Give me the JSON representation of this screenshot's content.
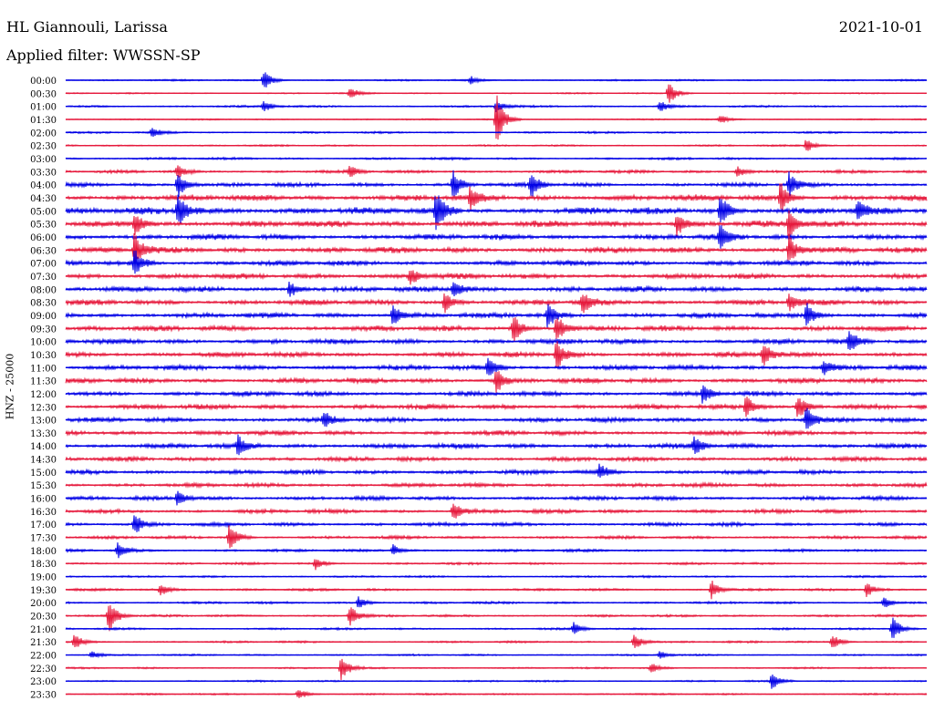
{
  "header": {
    "station": "HL Giannouli, Larissa",
    "date": "2021-10-01",
    "filter": "Applied filter: WWSSN-SP"
  },
  "ylabel": "HNZ - 25000",
  "colors": {
    "trace_a": "#0000e6",
    "trace_b": "#e6193c",
    "text": "#000000",
    "background": "#ffffff"
  },
  "chart_data": {
    "type": "line",
    "title": "HL Giannouli, Larissa",
    "subtitle": "Applied filter: WWSSN-SP",
    "ylabel": "HNZ - 25000",
    "xlabel": "",
    "grid": false,
    "legend": "none",
    "row_minutes": 30,
    "row_labels": [
      "00:00",
      "00:30",
      "01:00",
      "01:30",
      "02:00",
      "02:30",
      "03:00",
      "03:30",
      "04:00",
      "04:30",
      "05:00",
      "05:30",
      "06:00",
      "06:30",
      "07:00",
      "07:30",
      "08:00",
      "08:30",
      "09:00",
      "09:30",
      "10:00",
      "10:30",
      "11:00",
      "11:30",
      "12:00",
      "12:30",
      "13:00",
      "13:30",
      "14:00",
      "14:30",
      "15:00",
      "15:30",
      "16:00",
      "16:30",
      "17:00",
      "17:30",
      "18:00",
      "18:30",
      "19:00",
      "19:30",
      "20:00",
      "20:30",
      "21:00",
      "21:30",
      "22:00",
      "22:30",
      "23:00",
      "23:30"
    ],
    "row_colors": [
      "#0000e6",
      "#e6193c"
    ],
    "noise_level": [
      0.25,
      0.2,
      0.3,
      0.2,
      0.3,
      0.25,
      0.35,
      0.45,
      0.6,
      0.9,
      1.0,
      0.95,
      0.8,
      0.85,
      0.75,
      0.8,
      0.8,
      0.8,
      0.75,
      0.8,
      0.75,
      0.75,
      0.75,
      0.75,
      0.7,
      0.75,
      0.7,
      0.7,
      0.7,
      0.65,
      0.65,
      0.6,
      0.6,
      0.6,
      0.55,
      0.45,
      0.4,
      0.35,
      0.3,
      0.35,
      0.35,
      0.35,
      0.3,
      0.3,
      0.25,
      0.25,
      0.25,
      0.25
    ],
    "events": [
      {
        "row": 0,
        "t": 0.23,
        "amp": 1.0
      },
      {
        "row": 0,
        "t": 0.47,
        "amp": 0.4
      },
      {
        "row": 1,
        "t": 0.7,
        "amp": 1.2
      },
      {
        "row": 1,
        "t": 0.33,
        "amp": 0.6
      },
      {
        "row": 2,
        "t": 0.23,
        "amp": 0.6
      },
      {
        "row": 2,
        "t": 0.5,
        "amp": 0.6
      },
      {
        "row": 2,
        "t": 0.69,
        "amp": 0.6
      },
      {
        "row": 3,
        "t": 0.5,
        "amp": 2.5
      },
      {
        "row": 3,
        "t": 0.76,
        "amp": 0.5
      },
      {
        "row": 4,
        "t": 0.1,
        "amp": 0.5
      },
      {
        "row": 5,
        "t": 0.86,
        "amp": 0.7
      },
      {
        "row": 7,
        "t": 0.13,
        "amp": 0.6
      },
      {
        "row": 7,
        "t": 0.33,
        "amp": 0.6
      },
      {
        "row": 7,
        "t": 0.78,
        "amp": 0.6
      },
      {
        "row": 8,
        "t": 0.13,
        "amp": 1.3
      },
      {
        "row": 8,
        "t": 0.45,
        "amp": 1.4
      },
      {
        "row": 8,
        "t": 0.54,
        "amp": 1.3
      },
      {
        "row": 8,
        "t": 0.84,
        "amp": 1.1
      },
      {
        "row": 9,
        "t": 0.83,
        "amp": 1.6
      },
      {
        "row": 9,
        "t": 0.47,
        "amp": 1.0
      },
      {
        "row": 10,
        "t": 0.13,
        "amp": 2.0
      },
      {
        "row": 10,
        "t": 0.43,
        "amp": 2.0
      },
      {
        "row": 10,
        "t": 0.76,
        "amp": 1.8
      },
      {
        "row": 10,
        "t": 0.92,
        "amp": 1.0
      },
      {
        "row": 11,
        "t": 0.08,
        "amp": 1.2
      },
      {
        "row": 11,
        "t": 0.71,
        "amp": 1.2
      },
      {
        "row": 11,
        "t": 0.84,
        "amp": 1.4
      },
      {
        "row": 12,
        "t": 0.76,
        "amp": 1.2
      },
      {
        "row": 13,
        "t": 0.08,
        "amp": 2.0
      },
      {
        "row": 13,
        "t": 0.84,
        "amp": 1.5
      },
      {
        "row": 14,
        "t": 0.08,
        "amp": 1.3
      },
      {
        "row": 15,
        "t": 0.4,
        "amp": 1.0
      },
      {
        "row": 16,
        "t": 0.26,
        "amp": 0.8
      },
      {
        "row": 16,
        "t": 0.45,
        "amp": 1.0
      },
      {
        "row": 17,
        "t": 0.44,
        "amp": 1.0
      },
      {
        "row": 17,
        "t": 0.6,
        "amp": 1.0
      },
      {
        "row": 17,
        "t": 0.84,
        "amp": 0.9
      },
      {
        "row": 18,
        "t": 0.38,
        "amp": 1.0
      },
      {
        "row": 18,
        "t": 0.56,
        "amp": 1.2
      },
      {
        "row": 18,
        "t": 0.86,
        "amp": 1.3
      },
      {
        "row": 19,
        "t": 0.52,
        "amp": 1.4
      },
      {
        "row": 19,
        "t": 0.57,
        "amp": 1.4
      },
      {
        "row": 20,
        "t": 0.91,
        "amp": 1.2
      },
      {
        "row": 21,
        "t": 0.57,
        "amp": 1.6
      },
      {
        "row": 21,
        "t": 0.81,
        "amp": 1.4
      },
      {
        "row": 22,
        "t": 0.49,
        "amp": 1.2
      },
      {
        "row": 22,
        "t": 0.88,
        "amp": 0.8
      },
      {
        "row": 23,
        "t": 0.5,
        "amp": 1.2
      },
      {
        "row": 24,
        "t": 0.74,
        "amp": 1.0
      },
      {
        "row": 25,
        "t": 0.85,
        "amp": 1.4
      },
      {
        "row": 25,
        "t": 0.79,
        "amp": 1.1
      },
      {
        "row": 26,
        "t": 0.86,
        "amp": 1.3
      },
      {
        "row": 26,
        "t": 0.3,
        "amp": 0.8
      },
      {
        "row": 28,
        "t": 0.2,
        "amp": 1.0
      },
      {
        "row": 28,
        "t": 0.73,
        "amp": 1.0
      },
      {
        "row": 30,
        "t": 0.62,
        "amp": 0.8
      },
      {
        "row": 32,
        "t": 0.13,
        "amp": 0.9
      },
      {
        "row": 33,
        "t": 0.45,
        "amp": 1.0
      },
      {
        "row": 34,
        "t": 0.08,
        "amp": 1.0
      },
      {
        "row": 35,
        "t": 0.19,
        "amp": 1.4
      },
      {
        "row": 36,
        "t": 0.06,
        "amp": 0.8
      },
      {
        "row": 36,
        "t": 0.38,
        "amp": 0.6
      },
      {
        "row": 37,
        "t": 0.29,
        "amp": 0.6
      },
      {
        "row": 39,
        "t": 0.11,
        "amp": 0.6
      },
      {
        "row": 39,
        "t": 0.75,
        "amp": 0.9
      },
      {
        "row": 39,
        "t": 0.93,
        "amp": 0.7
      },
      {
        "row": 40,
        "t": 0.34,
        "amp": 0.6
      },
      {
        "row": 40,
        "t": 0.95,
        "amp": 0.6
      },
      {
        "row": 41,
        "t": 0.05,
        "amp": 1.8
      },
      {
        "row": 41,
        "t": 0.33,
        "amp": 1.0
      },
      {
        "row": 42,
        "t": 0.59,
        "amp": 0.6
      },
      {
        "row": 42,
        "t": 0.96,
        "amp": 1.3
      },
      {
        "row": 43,
        "t": 0.01,
        "amp": 0.8
      },
      {
        "row": 43,
        "t": 0.66,
        "amp": 0.8
      },
      {
        "row": 43,
        "t": 0.89,
        "amp": 0.8
      },
      {
        "row": 44,
        "t": 0.03,
        "amp": 0.4
      },
      {
        "row": 44,
        "t": 0.69,
        "amp": 0.4
      },
      {
        "row": 45,
        "t": 0.32,
        "amp": 1.2
      },
      {
        "row": 45,
        "t": 0.68,
        "amp": 0.5
      },
      {
        "row": 46,
        "t": 0.82,
        "amp": 0.8
      },
      {
        "row": 47,
        "t": 0.27,
        "amp": 0.6
      }
    ]
  }
}
